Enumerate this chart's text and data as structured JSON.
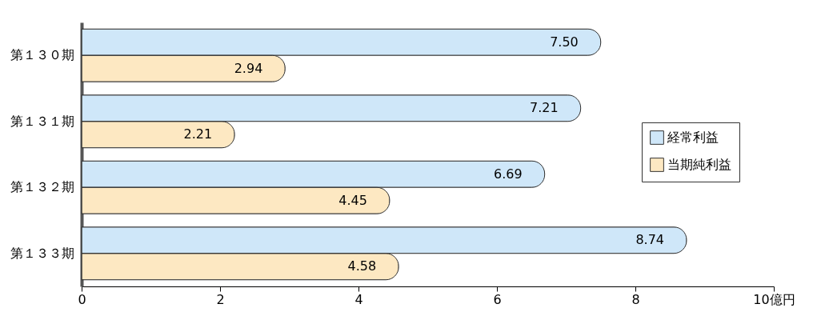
{
  "chart_data": {
    "type": "bar",
    "orientation": "horizontal",
    "categories": [
      "第１３０期",
      "第１３１期",
      "第１３２期",
      "第１３３期"
    ],
    "series": [
      {
        "name": "経常利益",
        "color": "#cfe7f9",
        "values": [
          7.5,
          7.21,
          6.69,
          8.74
        ],
        "value_labels": [
          "7.50",
          "7.21",
          "6.69",
          "8.74"
        ]
      },
      {
        "name": "当期純利益",
        "color": "#fde8c2",
        "values": [
          2.94,
          2.21,
          4.45,
          4.58
        ],
        "value_labels": [
          "2.94",
          "2.21",
          "4.45",
          "4.58"
        ]
      }
    ],
    "xlim": [
      0,
      10
    ],
    "xticks": [
      0,
      2,
      4,
      6,
      8,
      {
        "value": 10,
        "label": "10億円"
      }
    ],
    "grid": false,
    "legend": "right"
  }
}
